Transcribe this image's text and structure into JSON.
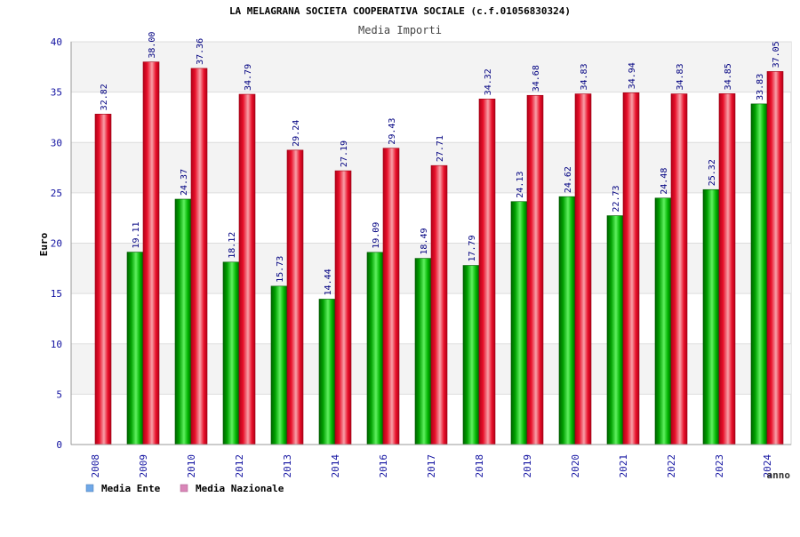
{
  "chart_data": {
    "type": "bar",
    "title": "LA MELAGRANA SOCIETA COOPERATIVA SOCIALE (c.f.01056830324)",
    "subtitle": "Media Importi",
    "xlabel": "anno",
    "ylabel": "Euro",
    "ylim": [
      0,
      40
    ],
    "yticks": [
      "0",
      "5",
      "10",
      "15",
      "20",
      "25",
      "30",
      "35",
      "40"
    ],
    "grid": true,
    "legend_position": "bottom-left",
    "categories": [
      "2008",
      "2009",
      "2010",
      "2012",
      "2013",
      "2014",
      "2016",
      "2017",
      "2018",
      "2019",
      "2020",
      "2021",
      "2022",
      "2023",
      "2024"
    ],
    "series": [
      {
        "name": "Media Ente",
        "color": "#00b400",
        "legend_color": "#6fa8e8",
        "values": [
          null,
          19.11,
          24.37,
          18.12,
          15.73,
          14.44,
          19.09,
          18.49,
          17.79,
          24.13,
          24.62,
          22.73,
          24.48,
          25.32,
          33.83
        ],
        "labels": [
          "",
          "19.11",
          "24.37",
          "18.12",
          "15.73",
          "14.44",
          "19.09",
          "18.49",
          "17.79",
          "24.13",
          "24.62",
          "22.73",
          "24.48",
          "25.32",
          "33.83"
        ]
      },
      {
        "name": "Media Nazionale",
        "color": "#e8102a",
        "legend_color": "#d986b8",
        "values": [
          32.82,
          38.0,
          37.36,
          34.79,
          29.24,
          27.19,
          29.43,
          27.71,
          34.32,
          34.68,
          34.83,
          34.94,
          34.83,
          34.85,
          37.05
        ],
        "labels": [
          "32.82",
          "38.00",
          "37.36",
          "34.79",
          "29.24",
          "27.19",
          "29.43",
          "27.71",
          "34.32",
          "34.68",
          "34.83",
          "34.94",
          "34.83",
          "34.85",
          "37.05"
        ]
      }
    ]
  }
}
